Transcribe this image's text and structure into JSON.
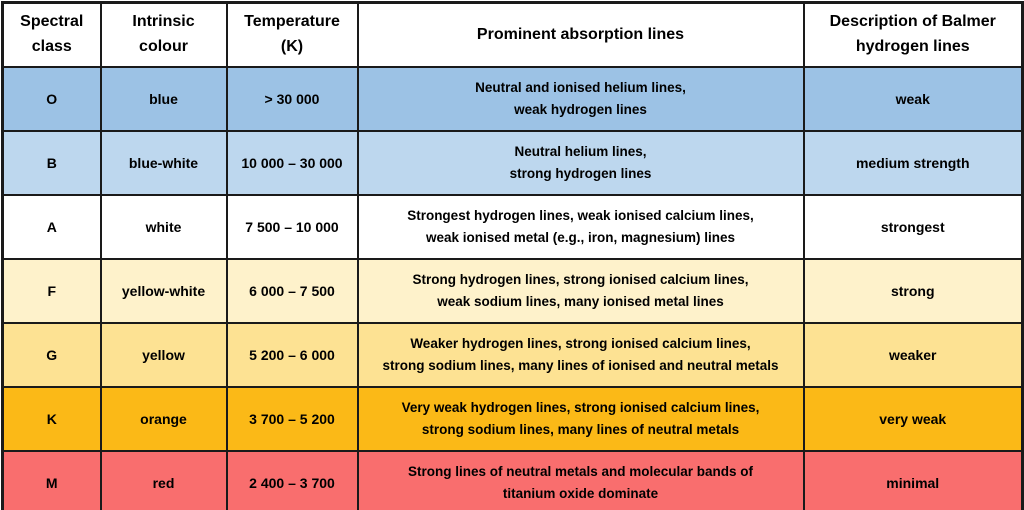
{
  "colors": {
    "border": "#1A1A1A",
    "header_bg": "#FFFFFF",
    "text": "#000000",
    "row_o": "#9CC2E5",
    "row_b": "#BDD7EE",
    "row_a": "#FFFFFF",
    "row_f": "#FEF2CB",
    "row_g": "#FDE293",
    "row_k": "#FBB917",
    "row_m": "#F96E6E"
  },
  "table": {
    "headers": [
      "Spectral\nclass",
      "Intrinsic\ncolour",
      "Temperature\n(K)",
      "Prominent absorption lines",
      "Description of Balmer\nhydrogen lines"
    ],
    "rows": [
      {
        "spectral_class": "O",
        "intrinsic_colour": "blue",
        "temperature_k": "> 30 000",
        "absorption_lines": "Neutral and ionised helium lines,\nweak hydrogen lines",
        "balmer_lines": "weak",
        "row_color": "#9CC2E5"
      },
      {
        "spectral_class": "B",
        "intrinsic_colour": "blue-white",
        "temperature_k": "10 000 – 30 000",
        "absorption_lines": "Neutral helium lines,\nstrong hydrogen lines",
        "balmer_lines": "medium strength",
        "row_color": "#BDD7EE"
      },
      {
        "spectral_class": "A",
        "intrinsic_colour": "white",
        "temperature_k": "7 500 – 10 000",
        "absorption_lines": "Strongest hydrogen lines, weak ionised calcium lines,\nweak ionised metal (e.g., iron, magnesium) lines",
        "balmer_lines": "strongest",
        "row_color": "#FFFFFF"
      },
      {
        "spectral_class": "F",
        "intrinsic_colour": "yellow-white",
        "temperature_k": "6 000 – 7 500",
        "absorption_lines": "Strong hydrogen lines, strong ionised calcium lines,\nweak sodium lines, many ionised metal lines",
        "balmer_lines": "strong",
        "row_color": "#FEF2CB"
      },
      {
        "spectral_class": "G",
        "intrinsic_colour": "yellow",
        "temperature_k": "5 200 – 6 000",
        "absorption_lines": "Weaker hydrogen lines, strong ionised calcium lines,\nstrong sodium lines, many lines of ionised and neutral metals",
        "balmer_lines": "weaker",
        "row_color": "#FDE293"
      },
      {
        "spectral_class": "K",
        "intrinsic_colour": "orange",
        "temperature_k": "3 700 – 5 200",
        "absorption_lines": "Very weak hydrogen lines, strong ionised calcium lines,\nstrong sodium lines, many lines of neutral metals",
        "balmer_lines": "very weak",
        "row_color": "#FBB917"
      },
      {
        "spectral_class": "M",
        "intrinsic_colour": "red",
        "temperature_k": "2 400 – 3 700",
        "absorption_lines": "Strong lines of neutral metals and molecular bands of\ntitanium oxide dominate",
        "balmer_lines": "minimal",
        "row_color": "#F96E6E"
      }
    ]
  }
}
